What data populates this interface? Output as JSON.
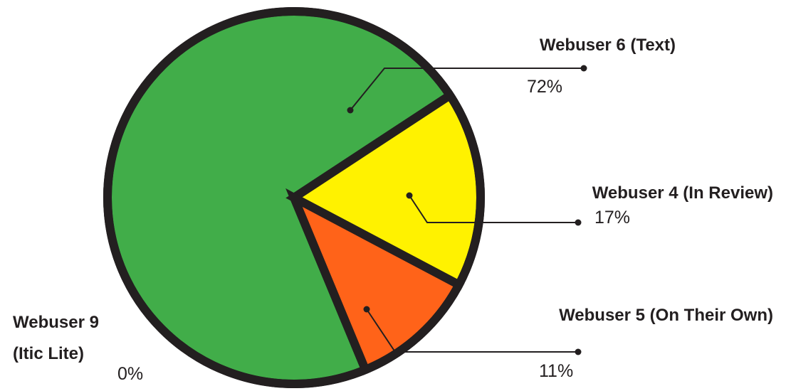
{
  "chart_data": {
    "type": "pie",
    "categories": [
      "Webuser 6 (Text)",
      "Webuser 4 (In Review)",
      "Webuser 5 (On Their Own)",
      "Webuser 9 (Itic Lite)"
    ],
    "values": [
      72,
      17,
      11,
      0
    ],
    "value_labels": [
      "72%",
      "17%",
      "11%",
      "0%"
    ],
    "colors": [
      "#41ad49",
      "#fff200",
      "#ff6319",
      "#9e9e9e"
    ]
  }
}
